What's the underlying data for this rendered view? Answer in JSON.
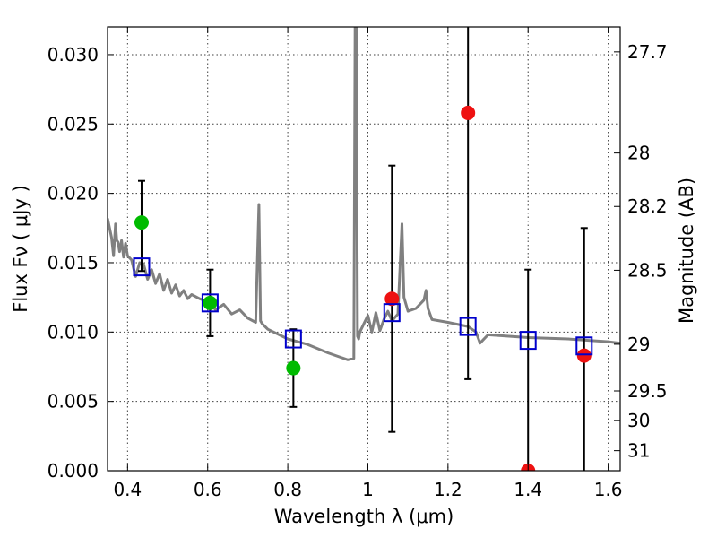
{
  "chart_data": {
    "type": "scatter",
    "xlabel": "Wavelength  λ (μm)",
    "ylabel": "Flux  Fν  ( μJy )",
    "y2label": "Magnitude (AB)",
    "xlim": [
      0.35,
      1.63
    ],
    "ylim": [
      0.0,
      0.032
    ],
    "grid": true,
    "x_ticks": [
      0.4,
      0.6,
      0.8,
      1.0,
      1.2,
      1.4,
      1.6
    ],
    "x_tick_labels": [
      "0.4",
      "0.6",
      "0.8",
      "1",
      "1.2",
      "1.4",
      "1.6"
    ],
    "y_ticks": [
      0.0,
      0.005,
      0.01,
      0.015,
      0.02,
      0.025,
      0.03
    ],
    "y_tick_labels": [
      "0.000",
      "0.005",
      "0.010",
      "0.015",
      "0.020",
      "0.025",
      "0.030"
    ],
    "mag_ticks": [
      27.7,
      28,
      28.2,
      28.5,
      29,
      29.5,
      30,
      31
    ],
    "mag_tick_labels": [
      "27.7",
      "28",
      "28.2",
      "28.5",
      "29",
      "29.5",
      "30",
      "31"
    ],
    "colors": {
      "model": "#808080",
      "detection": "#00bb00",
      "nondetection": "#ee1111",
      "model_photometry": "#0000cc",
      "errorbar": "#000000"
    },
    "series": [
      {
        "name": "model_sed",
        "kind": "line",
        "x": [
          0.35,
          0.36,
          0.365,
          0.37,
          0.373,
          0.376,
          0.38,
          0.385,
          0.39,
          0.395,
          0.4,
          0.41,
          0.42,
          0.43,
          0.44,
          0.45,
          0.46,
          0.47,
          0.48,
          0.49,
          0.5,
          0.51,
          0.52,
          0.53,
          0.54,
          0.55,
          0.56,
          0.58,
          0.6,
          0.62,
          0.64,
          0.66,
          0.68,
          0.7,
          0.72,
          0.728,
          0.732,
          0.736,
          0.75,
          0.8,
          0.85,
          0.9,
          0.95,
          0.965,
          0.968,
          0.971,
          0.974,
          0.977,
          0.98,
          1.0,
          1.01,
          1.02,
          1.03,
          1.04,
          1.05,
          1.06,
          1.075,
          1.085,
          1.09,
          1.1,
          1.12,
          1.14,
          1.145,
          1.15,
          1.16,
          1.2,
          1.25,
          1.27,
          1.28,
          1.3,
          1.4,
          1.5,
          1.6,
          1.63
        ],
        "y": [
          0.0182,
          0.0168,
          0.0155,
          0.0178,
          0.0166,
          0.0165,
          0.0158,
          0.0166,
          0.0154,
          0.0164,
          0.0155,
          0.0152,
          0.014,
          0.015,
          0.0149,
          0.0138,
          0.0145,
          0.0135,
          0.0142,
          0.013,
          0.0138,
          0.0128,
          0.0134,
          0.0126,
          0.013,
          0.0124,
          0.0127,
          0.0124,
          0.0122,
          0.0116,
          0.012,
          0.0113,
          0.0116,
          0.011,
          0.0107,
          0.0192,
          0.0108,
          0.0106,
          0.0102,
          0.0095,
          0.0091,
          0.0085,
          0.008,
          0.0081,
          0.032,
          0.032,
          0.0097,
          0.0095,
          0.01,
          0.0112,
          0.01,
          0.0114,
          0.0101,
          0.0109,
          0.0115,
          0.0108,
          0.0113,
          0.0178,
          0.0125,
          0.0115,
          0.0117,
          0.0123,
          0.013,
          0.0117,
          0.0109,
          0.0107,
          0.0104,
          0.01,
          0.0092,
          0.0098,
          0.0096,
          0.0095,
          0.0093,
          0.0092
        ]
      },
      {
        "name": "model_photometry",
        "kind": "open-square",
        "x": [
          0.435,
          0.606,
          0.814,
          1.06,
          1.25,
          1.4,
          1.54
        ],
        "y": [
          0.0147,
          0.0121,
          0.0095,
          0.0114,
          0.0104,
          0.0094,
          0.009
        ]
      },
      {
        "name": "detections",
        "kind": "filled-circle",
        "x": [
          0.435,
          0.606,
          0.814
        ],
        "y": [
          0.0179,
          0.0121,
          0.0074
        ],
        "yerr_low": [
          0.0035,
          0.0024,
          0.0028
        ],
        "yerr_high": [
          0.003,
          0.0024,
          0.0028
        ]
      },
      {
        "name": "non_detections",
        "kind": "filled-circle",
        "x": [
          1.06,
          1.25,
          1.4,
          1.54
        ],
        "y": [
          0.0124,
          0.0258,
          0.0,
          0.0083
        ],
        "yerr_low": [
          0.0096,
          0.0192,
          0.0,
          0.0083
        ],
        "yerr_high": [
          0.0096,
          0.016,
          0.0145,
          0.0092
        ]
      }
    ]
  }
}
